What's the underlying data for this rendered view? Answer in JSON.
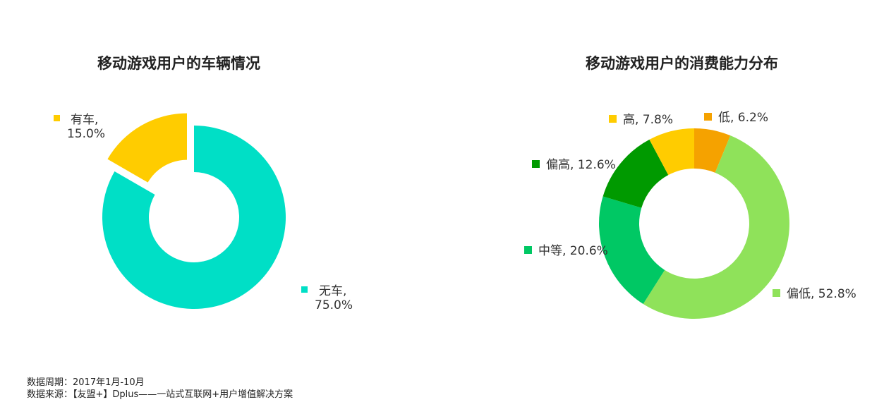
{
  "footer": {
    "period": "数据周期：2017年1月-10月",
    "source": "数据来源：【友盟+】Dplus——一站式互联网+用户增值解决方案"
  },
  "chart_data": [
    {
      "type": "pie",
      "title": "移动游戏用户的车辆情况",
      "donut": true,
      "slices": [
        {
          "label": "无车",
          "value": 75.0,
          "value_text": "75.0%",
          "color": "#00dfc6"
        },
        {
          "label": "有车",
          "value": 15.0,
          "value_text": "15.0%",
          "color": "#ffcc00",
          "exploded": true
        }
      ]
    },
    {
      "type": "pie",
      "title": "移动游戏用户的消费能力分布",
      "donut": true,
      "slices": [
        {
          "label": "低",
          "value": 6.2,
          "value_text": "6.2%",
          "color": "#f5a200"
        },
        {
          "label": "偏低",
          "value": 52.8,
          "value_text": "52.8%",
          "color": "#8fe25a"
        },
        {
          "label": "中等",
          "value": 20.6,
          "value_text": "20.6%",
          "color": "#00c864"
        },
        {
          "label": "偏高",
          "value": 12.6,
          "value_text": "12.6%",
          "color": "#009a00"
        },
        {
          "label": "高",
          "value": 7.8,
          "value_text": "7.8%",
          "color": "#ffcc00"
        }
      ]
    }
  ]
}
